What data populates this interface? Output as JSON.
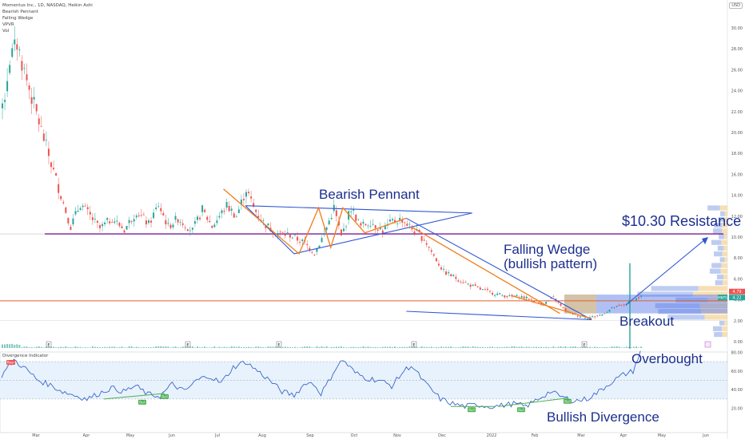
{
  "header": {
    "title": "Momentus Inc., 1D, NASDAQ, Heikin Ashi",
    "indicators": [
      "Bearish Pennant",
      "Falling Wedge",
      "VPVR",
      "Vol"
    ],
    "currency": "USD"
  },
  "oscillator": {
    "title": "Divergence Indicator",
    "bear_label": "Bear",
    "bull_label": "Bull"
  },
  "annotations": {
    "bearish_pennant": "Bearish Pennant",
    "resistance": "$10.30 Resistance",
    "falling_wedge_1": "Falling Wedge",
    "falling_wedge_2": "(bullish pattern)",
    "breakout": "Breakout",
    "overbought": "Overbought",
    "bullish_divergence": "Bullish Divergence"
  },
  "price_tags": {
    "upper": "4.79",
    "lower": "4.22",
    "mnts": "MNTS"
  },
  "earnings_marker": "E",
  "chart_data": {
    "type": "candlestick",
    "title": "Momentus Inc., 1D, NASDAQ, Heikin Ashi",
    "price_axis": {
      "min": 0,
      "max": 30,
      "ticks": [
        "0.00",
        "2.00",
        "4.00",
        "6.00",
        "8.00",
        "10.00",
        "12.00",
        "14.00",
        "16.00",
        "18.00",
        "20.00",
        "22.00",
        "24.00",
        "26.00",
        "28.00",
        "30.00"
      ]
    },
    "oscillator_axis": {
      "min": 0,
      "max": 100,
      "ticks": [
        "20.00",
        "40.00",
        "60.00",
        "80.00"
      ],
      "overbought": 70,
      "oversold": 30
    },
    "time_axis": [
      "Mar",
      "Apr",
      "May",
      "Jun",
      "Jul",
      "Aug",
      "Sep",
      "Oct",
      "Nov",
      "Dec",
      "2022",
      "Feb",
      "Mar",
      "Apr",
      "May",
      "Jun"
    ],
    "resistance_level": 10.3,
    "support_level": 3.9,
    "current_price": 4.22,
    "upper_price_tag": 4.79,
    "price_waypoints": [
      [
        0,
        22
      ],
      [
        3,
        27
      ],
      [
        6,
        28.5
      ],
      [
        10,
        25
      ],
      [
        15,
        21
      ],
      [
        20,
        17
      ],
      [
        24,
        14
      ],
      [
        28,
        11
      ],
      [
        32,
        13.2
      ],
      [
        36,
        12
      ],
      [
        40,
        10.8
      ],
      [
        45,
        11.8
      ],
      [
        50,
        10.7
      ],
      [
        55,
        12.5
      ],
      [
        60,
        11.2
      ],
      [
        64,
        13.1
      ],
      [
        68,
        11
      ],
      [
        72,
        11.8
      ],
      [
        78,
        10.6
      ],
      [
        82,
        12.6
      ],
      [
        86,
        11
      ],
      [
        92,
        13
      ],
      [
        96,
        12
      ],
      [
        100,
        14.6
      ],
      [
        103,
        12.8
      ],
      [
        107,
        11.4
      ],
      [
        112,
        10.4
      ],
      [
        118,
        10.2
      ],
      [
        124,
        9.4
      ],
      [
        128,
        8.5
      ],
      [
        132,
        10.3
      ],
      [
        136,
        12.8
      ],
      [
        139,
        10
      ],
      [
        143,
        12.8
      ],
      [
        147,
        11
      ],
      [
        151,
        11.5
      ],
      [
        156,
        10.6
      ],
      [
        160,
        11.5
      ],
      [
        164,
        11.7
      ],
      [
        168,
        10.8
      ],
      [
        173,
        9.8
      ],
      [
        177,
        8.2
      ],
      [
        181,
        6.7
      ],
      [
        185,
        6.2
      ],
      [
        190,
        5.6
      ],
      [
        196,
        5
      ],
      [
        202,
        4.6
      ],
      [
        208,
        4.3
      ],
      [
        213,
        4.3
      ],
      [
        217,
        4
      ],
      [
        222,
        3.6
      ],
      [
        226,
        4.2
      ],
      [
        229,
        3.4
      ],
      [
        232,
        2.8
      ],
      [
        236,
        2.5
      ],
      [
        240,
        2.3
      ],
      [
        243,
        2.4
      ],
      [
        246,
        2.6
      ],
      [
        250,
        3.2
      ],
      [
        255,
        3.5
      ],
      [
        259,
        4
      ],
      [
        262,
        4.3
      ]
    ],
    "oscillator_waypoints": [
      [
        0,
        55
      ],
      [
        5,
        72
      ],
      [
        10,
        62
      ],
      [
        15,
        50
      ],
      [
        20,
        45
      ],
      [
        25,
        38
      ],
      [
        30,
        34
      ],
      [
        35,
        30
      ],
      [
        40,
        36
      ],
      [
        45,
        42
      ],
      [
        50,
        38
      ],
      [
        55,
        44
      ],
      [
        60,
        35
      ],
      [
        65,
        33
      ],
      [
        70,
        46
      ],
      [
        75,
        38
      ],
      [
        80,
        50
      ],
      [
        85,
        55
      ],
      [
        90,
        47
      ],
      [
        95,
        64
      ],
      [
        100,
        70
      ],
      [
        105,
        60
      ],
      [
        110,
        50
      ],
      [
        115,
        38
      ],
      [
        120,
        34
      ],
      [
        125,
        48
      ],
      [
        128,
        46
      ],
      [
        131,
        36
      ],
      [
        134,
        48
      ],
      [
        137,
        63
      ],
      [
        140,
        72
      ],
      [
        145,
        58
      ],
      [
        150,
        52
      ],
      [
        155,
        50
      ],
      [
        160,
        44
      ],
      [
        165,
        60
      ],
      [
        168,
        66
      ],
      [
        171,
        56
      ],
      [
        174,
        46
      ],
      [
        177,
        38
      ],
      [
        180,
        30
      ],
      [
        185,
        25
      ],
      [
        190,
        22
      ],
      [
        195,
        24
      ],
      [
        200,
        22
      ],
      [
        205,
        23
      ],
      [
        210,
        25
      ],
      [
        215,
        22
      ],
      [
        220,
        30
      ],
      [
        225,
        38
      ],
      [
        230,
        32
      ],
      [
        235,
        28
      ],
      [
        240,
        30
      ],
      [
        245,
        38
      ],
      [
        250,
        48
      ],
      [
        255,
        56
      ],
      [
        259,
        60
      ],
      [
        262,
        80
      ]
    ],
    "overlays": {
      "bearish_pennant": {
        "upper": [
          [
            100,
            14.6
          ],
          [
            200,
            12.5
          ]
        ],
        "lower": [
          [
            125,
            8.2
          ],
          [
            170,
            11.8
          ]
        ]
      },
      "falling_wedge": {
        "upper": [
          [
            170,
            11.8
          ],
          [
            262,
            2.1
          ]
        ],
        "lower": [
          [
            170,
            3
          ]
        ],
        "lower_end": [
          [
            262,
            2.1
          ]
        ]
      }
    }
  }
}
